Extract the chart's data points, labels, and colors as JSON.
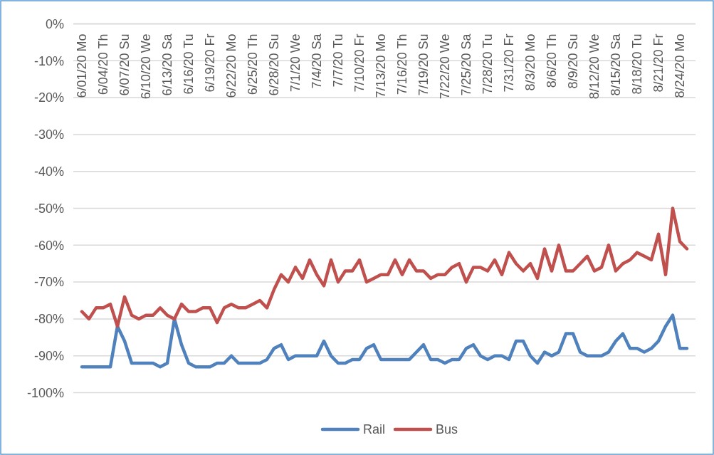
{
  "chart_data": {
    "type": "line",
    "categories": [
      "6/01/20 Mo",
      null,
      null,
      "6/04/20 Th",
      null,
      null,
      "6/07/20 Su",
      null,
      null,
      "6/10/20 We",
      null,
      null,
      "6/13/20 Sa",
      null,
      null,
      "6/16/20 Tu",
      null,
      null,
      "6/19/20 Fr",
      null,
      null,
      "6/22/20 Mo",
      null,
      null,
      "6/25/20 Th",
      null,
      null,
      "6/28/20 Su",
      null,
      null,
      "7/1/20 We",
      null,
      null,
      "7/4/20 Sa",
      null,
      null,
      "7/7/20 Tu",
      null,
      null,
      "7/10/20 Fr",
      null,
      null,
      "7/13/20 Mo",
      null,
      null,
      "7/16/20 Th",
      null,
      null,
      "7/19/20 Su",
      null,
      null,
      "7/22/20 We",
      null,
      null,
      "7/25/20 Sa",
      null,
      null,
      "7/28/20 Tu",
      null,
      null,
      "7/31/20 Fr",
      null,
      null,
      "8/3/20 Mo",
      null,
      null,
      "8/6/20 Th",
      null,
      null,
      "8/9/20 Su",
      null,
      null,
      "8/12/20 We",
      null,
      null,
      "8/15/20 Sa",
      null,
      null,
      "8/18/20 Tu",
      null,
      null,
      "8/21/20 Fr",
      null,
      null,
      "8/24/20 Mo",
      null
    ],
    "series": [
      {
        "name": "Rail",
        "color": "#4f81bd",
        "values": [
          -93,
          -93,
          -93,
          -93,
          -93,
          -82,
          -86,
          -92,
          -92,
          -92,
          -92,
          -93,
          -92,
          -80,
          -87,
          -92,
          -93,
          -93,
          -93,
          -92,
          -92,
          -90,
          -92,
          -92,
          -92,
          -92,
          -91,
          -88,
          -87,
          -91,
          -90,
          -90,
          -90,
          -90,
          -86,
          -90,
          -92,
          -92,
          -91,
          -91,
          -88,
          -87,
          -91,
          -91,
          -91,
          -91,
          -91,
          -89,
          -87,
          -91,
          -91,
          -92,
          -91,
          -91,
          -88,
          -87,
          -90,
          -91,
          -90,
          -90,
          -91,
          -86,
          -86,
          -90,
          -92,
          -89,
          -90,
          -89,
          -84,
          -84,
          -89,
          -90,
          -90,
          -90,
          -89,
          -86,
          -84,
          -88,
          -88,
          -89,
          -88,
          -86,
          -82,
          -79,
          -88,
          -88
        ]
      },
      {
        "name": "Bus",
        "color": "#c0504d",
        "values": [
          -78,
          -80,
          -77,
          -77,
          -76,
          -82,
          -74,
          -79,
          -80,
          -79,
          -79,
          -77,
          -79,
          -80,
          -76,
          -78,
          -78,
          -77,
          -77,
          -81,
          -77,
          -76,
          -77,
          -77,
          -76,
          -75,
          -77,
          -72,
          -68,
          -70,
          -66,
          -69,
          -64,
          -68,
          -71,
          -64,
          -70,
          -67,
          -67,
          -64,
          -70,
          -69,
          -68,
          -68,
          -64,
          -68,
          -64,
          -67,
          -67,
          -69,
          -68,
          -68,
          -66,
          -65,
          -70,
          -66,
          -66,
          -67,
          -64,
          -68,
          -62,
          -65,
          -67,
          -65,
          -69,
          -61,
          -67,
          -60,
          -67,
          -67,
          -65,
          -63,
          -67,
          -66,
          -60,
          -67,
          -65,
          -64,
          -62,
          -63,
          -64,
          -57,
          -68,
          -50,
          -59,
          -61
        ]
      }
    ],
    "ylim": [
      -100,
      0
    ],
    "yticks": [
      {
        "value": 0,
        "label": "0%"
      },
      {
        "value": -10,
        "label": "-10%"
      },
      {
        "value": -20,
        "label": "-20%"
      },
      {
        "value": -30,
        "label": "-30%"
      },
      {
        "value": -40,
        "label": "-40%"
      },
      {
        "value": -50,
        "label": "-50%"
      },
      {
        "value": -60,
        "label": "-60%"
      },
      {
        "value": -70,
        "label": "-70%"
      },
      {
        "value": -80,
        "label": "-80%"
      },
      {
        "value": -90,
        "label": "-90%"
      },
      {
        "value": -100,
        "label": "-100%"
      }
    ],
    "grid": "y",
    "legend": "bottom",
    "marker": "none",
    "line_style": "solid"
  }
}
